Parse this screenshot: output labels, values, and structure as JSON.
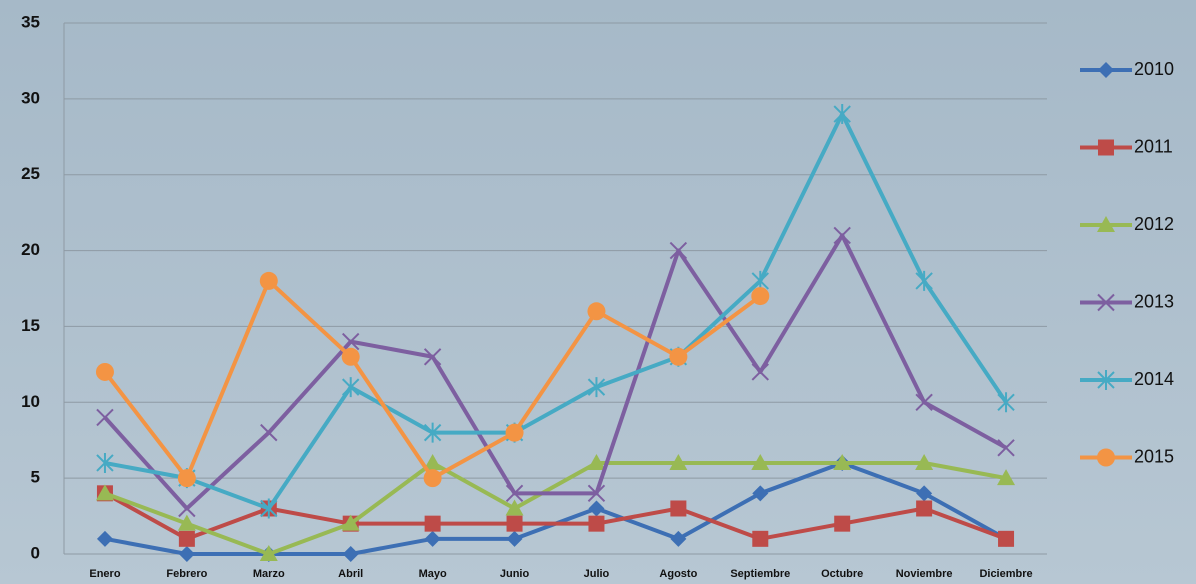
{
  "chart_data": {
    "type": "line",
    "categories": [
      "Enero",
      "Febrero",
      "Marzo",
      "Abril",
      "Mayo",
      "Junio",
      "Julio",
      "Agosto",
      "Septiembre",
      "Octubre",
      "Noviembre",
      "Diciembre"
    ],
    "series": [
      {
        "name": "2010",
        "color": "#3d6fb4",
        "marker": "diamond",
        "values": [
          1,
          0,
          0,
          0,
          1,
          1,
          3,
          1,
          4,
          6,
          4,
          1
        ]
      },
      {
        "name": "2011",
        "color": "#be4b48",
        "marker": "square",
        "values": [
          4,
          1,
          3,
          2,
          2,
          2,
          2,
          3,
          1,
          2,
          3,
          1
        ]
      },
      {
        "name": "2012",
        "color": "#98b954",
        "marker": "triangle",
        "values": [
          4,
          2,
          0,
          2,
          6,
          3,
          6,
          6,
          6,
          6,
          6,
          5
        ]
      },
      {
        "name": "2013",
        "color": "#7d5fa0",
        "marker": "x",
        "values": [
          9,
          3,
          8,
          14,
          13,
          4,
          4,
          20,
          12,
          21,
          10,
          7
        ]
      },
      {
        "name": "2014",
        "color": "#46aac4",
        "marker": "star",
        "values": [
          6,
          5,
          3,
          11,
          8,
          8,
          11,
          13,
          18,
          29,
          18,
          10
        ]
      },
      {
        "name": "2015",
        "color": "#f39444",
        "marker": "circle",
        "values": [
          12,
          5,
          18,
          13,
          5,
          8,
          16,
          13,
          17,
          null,
          null,
          null
        ]
      }
    ],
    "ylim": [
      0,
      35
    ],
    "yticks": [
      0,
      5,
      10,
      15,
      20,
      25,
      30,
      35
    ],
    "grid": true,
    "legend": "right"
  }
}
